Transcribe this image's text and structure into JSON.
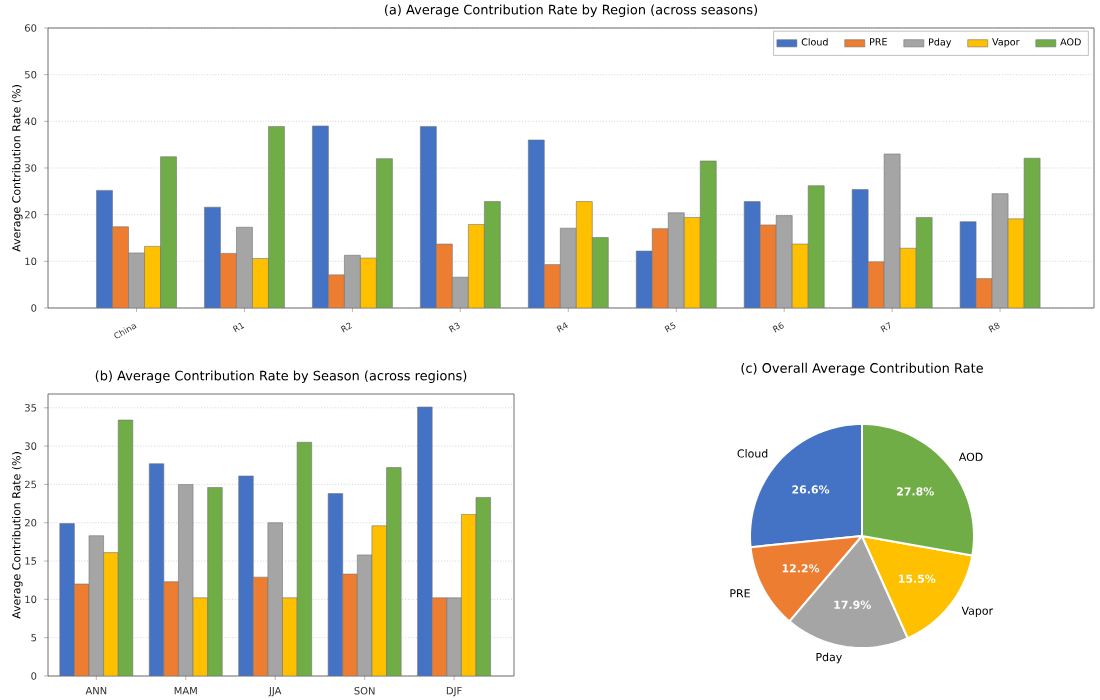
{
  "chart_data": [
    {
      "type": "bar",
      "title": "(a) Average Contribution Rate by Region (across seasons)",
      "ylabel": "Average Contribution Rate (%)",
      "categories": [
        "China",
        "R1",
        "R2",
        "R3",
        "R4",
        "R5",
        "R6",
        "R7",
        "R8"
      ],
      "series": [
        {
          "name": "Cloud",
          "color": "#4472c4",
          "values": [
            25.2,
            21.6,
            39.0,
            38.9,
            36.0,
            12.2,
            22.8,
            25.4,
            18.5
          ]
        },
        {
          "name": "PRE",
          "color": "#ed7d31",
          "values": [
            17.4,
            11.7,
            7.1,
            13.7,
            9.3,
            17.0,
            17.8,
            9.9,
            6.3
          ]
        },
        {
          "name": "Pday",
          "color": "#a5a5a5",
          "values": [
            11.8,
            17.3,
            11.3,
            6.6,
            17.1,
            20.4,
            19.8,
            33.0,
            24.5
          ]
        },
        {
          "name": "Vapor",
          "color": "#ffc000",
          "values": [
            13.2,
            10.6,
            10.7,
            17.9,
            22.8,
            19.4,
            13.7,
            12.8,
            19.1
          ]
        },
        {
          "name": "AOD",
          "color": "#70ad47",
          "values": [
            32.4,
            38.9,
            32.0,
            22.8,
            15.1,
            31.5,
            26.2,
            19.4,
            32.1
          ]
        }
      ],
      "ylim": [
        0,
        60
      ],
      "yticks": [
        0,
        10,
        20,
        30,
        40,
        50,
        60
      ],
      "grid": "y",
      "legend": "top right"
    },
    {
      "type": "bar",
      "title": "(b) Average Contribution Rate by Season (across regions)",
      "ylabel": "Average Contribution Rate (%)",
      "categories": [
        "ANN",
        "MAM",
        "JJA",
        "SON",
        "DJF"
      ],
      "series": [
        {
          "color": "#4472c4",
          "values": [
            19.9,
            27.7,
            26.1,
            23.8,
            35.1
          ]
        },
        {
          "color": "#ed7d31",
          "values": [
            12.0,
            12.3,
            12.9,
            13.3,
            10.2
          ]
        },
        {
          "color": "#a5a5a5",
          "values": [
            18.3,
            25.0,
            20.0,
            15.8,
            10.2
          ]
        },
        {
          "color": "#ffc000",
          "values": [
            16.1,
            10.2,
            10.2,
            19.6,
            21.1
          ]
        },
        {
          "color": "#70ad47",
          "values": [
            33.4,
            24.6,
            30.5,
            27.2,
            23.3
          ]
        }
      ],
      "ylim": [
        0,
        36.8
      ],
      "yticks": [
        0,
        5,
        10,
        15,
        20,
        25,
        30,
        35
      ],
      "grid": "y"
    },
    {
      "type": "pie",
      "title": "(c) Overall Average Contribution Rate",
      "categories": [
        "Cloud",
        "PRE",
        "Pday",
        "Vapor",
        "AOD"
      ],
      "values": [
        26.6,
        12.2,
        17.9,
        15.5,
        27.8
      ],
      "colors": [
        "#4472c4",
        "#ed7d31",
        "#a5a5a5",
        "#ffc000",
        "#70ad47"
      ],
      "value_labels": [
        "26.6%",
        "12.2%",
        "17.9%",
        "15.5%",
        "27.8%"
      ]
    }
  ]
}
